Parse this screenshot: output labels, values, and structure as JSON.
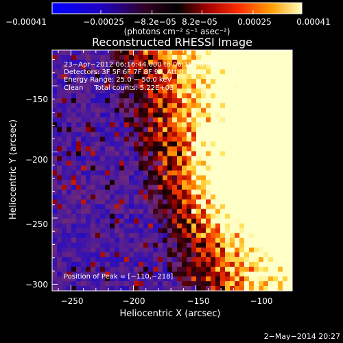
{
  "chart_data": {
    "type": "heatmap",
    "title": "Reconstructed RHESSI Image",
    "xlabel": "Heliocentric X (arcsec)",
    "ylabel": "Heliocentric Y (arcsec)",
    "xlim": [
      -265,
      -73
    ],
    "ylim": [
      -305,
      -123
    ],
    "xticks": [
      -250,
      -200,
      -150,
      -100
    ],
    "yticks": [
      -300,
      -250,
      -200,
      -150
    ],
    "xtick_labels": [
      "−250",
      "−200",
      "−150",
      "−100"
    ],
    "ytick_labels": [
      "−300",
      "−250",
      "−200",
      "−150"
    ],
    "colorbar": {
      "range": [
        -0.00041,
        0.00041
      ],
      "ticks": [
        -0.00041,
        -0.00025,
        -8.2e-05,
        8.2e-05,
        0.00025,
        0.00041
      ],
      "tick_labels": [
        "−0.00041",
        "−0.00025",
        "−8.2e−05",
        "8.2e−05",
        "0.00025",
        "0.00041"
      ],
      "units": "(photons cm⁻² s⁻¹ asec⁻²)",
      "colors": [
        "#0000ff",
        "#7a0000",
        "#ff4000",
        "#ffaa00",
        "#ffffb0"
      ]
    },
    "annotations": [
      "23−Apr−2012 06:16:44.000 to 06:18:36.000",
      "Detectors: 3F 5F 6F 7F 8F 9F, Att 0",
      "Energy Range: 25.0 − 50.0 keV",
      "Clean     Total counts: 5.22E+03",
      "Position of Peak = [−110,−218]"
    ],
    "peak": {
      "x": -110,
      "y": -218
    },
    "grid": false
  },
  "footer": {
    "date": "2−May−2014 20:27"
  }
}
